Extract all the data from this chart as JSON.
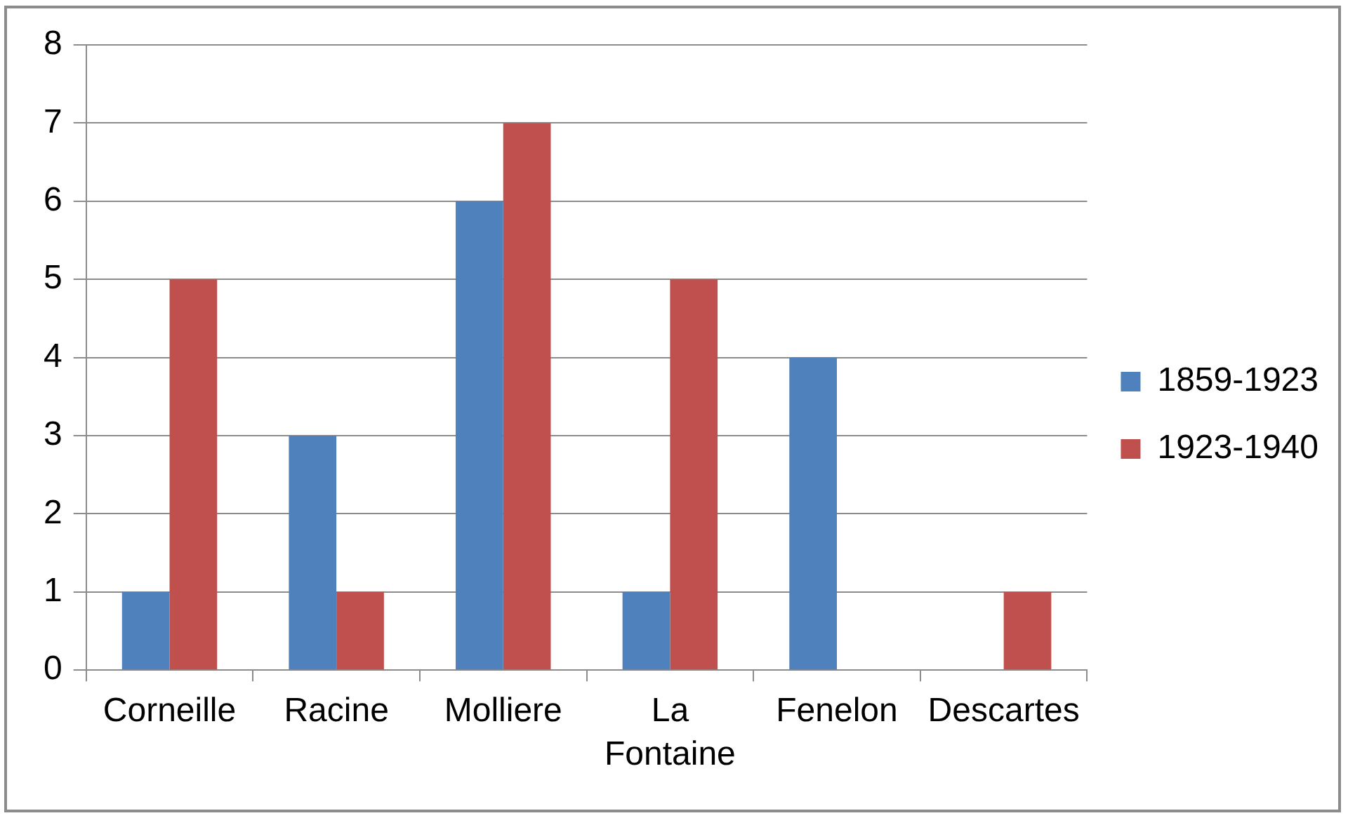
{
  "chart_data": {
    "type": "bar",
    "categories": [
      "Corneille",
      "Racine",
      "Molliere",
      "La Fontaine",
      "Fenelon",
      "Descartes"
    ],
    "series": [
      {
        "name": "1859-1923",
        "color": "#4f81bd",
        "values": [
          1,
          3,
          6,
          1,
          4,
          0
        ]
      },
      {
        "name": "1923-1940",
        "color": "#c0504d",
        "values": [
          5,
          1,
          7,
          5,
          0,
          1
        ]
      }
    ],
    "ylim": [
      0,
      8
    ],
    "yticks": [
      0,
      1,
      2,
      3,
      4,
      5,
      6,
      7,
      8
    ],
    "grid": "y",
    "legend": "right"
  }
}
